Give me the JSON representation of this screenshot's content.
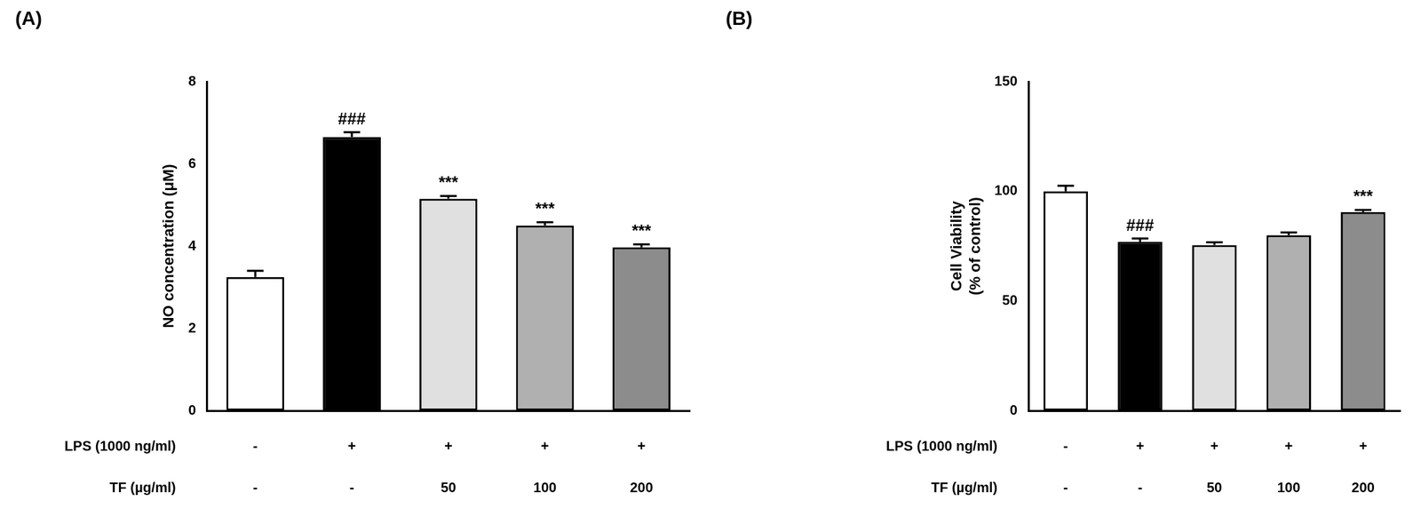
{
  "chart_data": [
    {
      "type": "bar",
      "title": "(A)",
      "y_label": "NO concentration (μM)",
      "category_rows": [
        "LPS (1000 ng/ml)",
        "TF (µg/ml)"
      ],
      "categories": [
        [
          "-",
          "-"
        ],
        [
          "+",
          "-"
        ],
        [
          "+",
          "50"
        ],
        [
          "+",
          "100"
        ],
        [
          "+",
          "200"
        ]
      ],
      "values": [
        3.25,
        6.65,
        5.15,
        4.5,
        3.97
      ],
      "errors": [
        0.15,
        0.12,
        0.07,
        0.08,
        0.07
      ],
      "annotations": [
        null,
        "###",
        "***",
        "***",
        "***"
      ],
      "colors": [
        "#ffffff",
        "#000000",
        "#e0e0e0",
        "#b0b0b0",
        "#8c8c8c"
      ],
      "ylim": [
        0,
        8
      ],
      "yticks": [
        0,
        2,
        4,
        6,
        8
      ],
      "grid": false
    },
    {
      "type": "bar",
      "title": "(B)",
      "y_label": [
        "Cell Viability",
        "(% of control)"
      ],
      "category_rows": [
        "LPS (1000 ng/ml)",
        "TF (µg/ml)"
      ],
      "categories": [
        [
          "-",
          "-"
        ],
        [
          "+",
          "-"
        ],
        [
          "+",
          "50"
        ],
        [
          "+",
          "100"
        ],
        [
          "+",
          "200"
        ]
      ],
      "values": [
        100,
        77,
        75.5,
        80,
        90.5
      ],
      "errors": [
        2.5,
        1.5,
        1.2,
        1.2,
        1.0
      ],
      "annotations": [
        null,
        "###",
        null,
        null,
        "***"
      ],
      "colors": [
        "#ffffff",
        "#000000",
        "#e0e0e0",
        "#b0b0b0",
        "#8c8c8c"
      ],
      "ylim": [
        0,
        150
      ],
      "yticks": [
        0,
        50,
        100,
        150
      ],
      "grid": false
    }
  ]
}
